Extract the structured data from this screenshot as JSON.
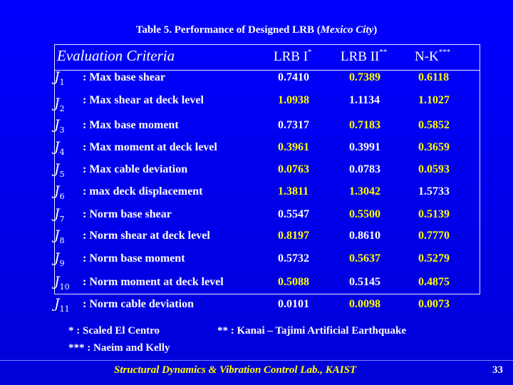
{
  "title": {
    "prefix": "Table 5. Performance of Designed LRB (",
    "city": "Mexico City",
    "suffix": ")"
  },
  "header": {
    "criteria": "Evaluation Criteria",
    "columns": [
      {
        "label": "LRB I",
        "mark": "*"
      },
      {
        "label": "LRB II",
        "mark": "**"
      },
      {
        "label": "N-K",
        "mark": "***"
      }
    ]
  },
  "colors": {
    "background": "#0000ff",
    "white_value": "#ffffff",
    "yellow_value": "#ffff00",
    "footer": "#ffff00"
  },
  "rows": [
    {
      "j": "J",
      "sub": "1",
      "criterion": ": Max base shear",
      "values": [
        "0.7410",
        "0.7389",
        "0.6118"
      ],
      "colors": [
        "white",
        "yellow",
        "yellow"
      ]
    },
    {
      "j": "J",
      "sub": "2",
      "criterion": ": Max shear at deck level",
      "values": [
        "1.0938",
        "1.1134",
        "1.1027"
      ],
      "colors": [
        "yellow",
        "white",
        "yellow"
      ]
    },
    {
      "j": "J",
      "sub": "3",
      "criterion": ": Max base moment",
      "values": [
        "0.7317",
        "0.7183",
        "0.5852"
      ],
      "colors": [
        "white",
        "yellow",
        "yellow"
      ]
    },
    {
      "j": "J",
      "sub": "4",
      "criterion": ": Max moment at deck level",
      "values": [
        "0.3961",
        "0.3991",
        "0.3659"
      ],
      "colors": [
        "yellow",
        "white",
        "yellow"
      ]
    },
    {
      "j": "J",
      "sub": "5",
      "criterion": ": Max cable deviation",
      "values": [
        "0.0763",
        "0.0783",
        "0.0593"
      ],
      "colors": [
        "yellow",
        "white",
        "yellow"
      ]
    },
    {
      "j": "J",
      "sub": "6",
      "criterion": ": max deck displacement",
      "values": [
        "1.3811",
        "1.3042",
        "1.5733"
      ],
      "colors": [
        "yellow",
        "yellow",
        "white"
      ]
    },
    {
      "j": "J",
      "sub": "7",
      "criterion": ": Norm base shear",
      "values": [
        "0.5547",
        "0.5500",
        "0.5139"
      ],
      "colors": [
        "white",
        "yellow",
        "yellow"
      ]
    },
    {
      "j": "J",
      "sub": "8",
      "criterion": ": Norm shear at deck level",
      "values": [
        "0.8197",
        "0.8610",
        "0.7770"
      ],
      "colors": [
        "yellow",
        "white",
        "yellow"
      ]
    },
    {
      "j": "J",
      "sub": "9",
      "criterion": ": Norm base moment",
      "values": [
        "0.5732",
        "0.5637",
        "0.5279"
      ],
      "colors": [
        "white",
        "yellow",
        "yellow"
      ]
    },
    {
      "j": "J",
      "sub": "10",
      "criterion": ": Norm moment at deck level",
      "values": [
        "0.5088",
        "0.5145",
        "0.4875"
      ],
      "colors": [
        "yellow",
        "white",
        "yellow"
      ]
    },
    {
      "j": "J",
      "sub": "11",
      "criterion": ": Norm cable deviation",
      "values": [
        "0.0101",
        "0.0098",
        "0.0073"
      ],
      "colors": [
        "white",
        "yellow",
        "yellow"
      ]
    }
  ],
  "footnotes": {
    "scaled": "*   : Scaled El Centro",
    "naeim": "*** : Naeim and Kelly",
    "kanai": "** : Kanai – Tajimi Artificial Earthquake"
  },
  "footer": "Structural Dynamics & Vibration Control Lab., KAIST",
  "page_number": "33"
}
